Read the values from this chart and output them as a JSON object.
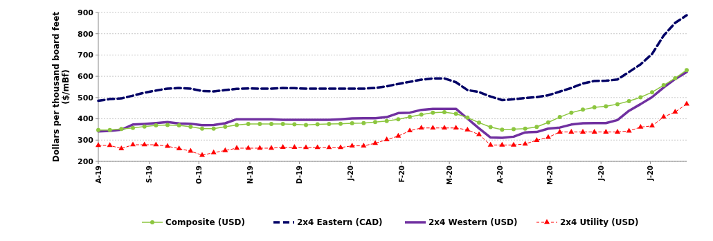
{
  "chart_data": {
    "type": "line",
    "ylabel": "Dollars per thousand board feet ($/mBf)",
    "x": [
      "2019-08-01",
      "2019-08-08",
      "2019-08-15",
      "2019-08-22",
      "2019-08-29",
      "2019-09-05",
      "2019-09-12",
      "2019-09-19",
      "2019-09-26",
      "2019-10-03",
      "2019-10-10",
      "2019-10-17",
      "2019-10-24",
      "2019-10-31",
      "2019-11-07",
      "2019-11-14",
      "2019-11-21",
      "2019-11-28",
      "2019-12-05",
      "2019-12-12",
      "2019-12-19",
      "2019-12-26",
      "2020-01-02",
      "2020-01-09",
      "2020-01-16",
      "2020-01-23",
      "2020-01-30",
      "2020-02-06",
      "2020-02-13",
      "2020-02-20",
      "2020-02-27",
      "2020-03-05",
      "2020-03-12",
      "2020-03-19",
      "2020-03-26",
      "2020-04-02",
      "2020-04-09",
      "2020-04-16",
      "2020-04-23",
      "2020-04-30",
      "2020-05-07",
      "2020-05-14",
      "2020-05-21",
      "2020-05-28",
      "2020-06-04",
      "2020-06-11",
      "2020-06-18",
      "2020-06-25",
      "2020-07-02",
      "2020-07-09",
      "2020-07-16",
      "2020-07-23"
    ],
    "xlim": [
      "2019-08-01",
      "2020-07-23"
    ],
    "xticks": [
      {
        "value": "2019-08-01",
        "label": "A-19"
      },
      {
        "value": "2019-09-01",
        "label": "S-19"
      },
      {
        "value": "2019-10-01",
        "label": "O-19"
      },
      {
        "value": "2019-11-01",
        "label": "N-19"
      },
      {
        "value": "2019-12-01",
        "label": "D-19"
      },
      {
        "value": "2020-01-01",
        "label": "J-20"
      },
      {
        "value": "2020-02-01",
        "label": "F-20"
      },
      {
        "value": "2020-03-01",
        "label": "M-20"
      },
      {
        "value": "2020-04-01",
        "label": "A-20"
      },
      {
        "value": "2020-05-01",
        "label": "M-20"
      },
      {
        "value": "2020-06-01",
        "label": "J-20"
      },
      {
        "value": "2020-07-01",
        "label": "J-20"
      }
    ],
    "ylim": [
      200,
      900
    ],
    "yticks": [
      200,
      300,
      400,
      500,
      600,
      700,
      800,
      900
    ],
    "grid": "y",
    "legend": "bottom",
    "series": [
      {
        "name": "Composite (USD)",
        "color": "#8cc63f",
        "marker": "circle",
        "line_style": "solid",
        "values": [
          347,
          347,
          352,
          357,
          364,
          369,
          371,
          369,
          363,
          354,
          354,
          363,
          371,
          376,
          376,
          376,
          376,
          374,
          371,
          374,
          376,
          377,
          379,
          380,
          385,
          390,
          398,
          409,
          420,
          429,
          431,
          424,
          406,
          382,
          361,
          349,
          351,
          354,
          362,
          383,
          408,
          429,
          443,
          454,
          459,
          469,
          483,
          501,
          525,
          558,
          591,
          629
        ]
      },
      {
        "name": "2x4 Eastern (CAD)",
        "color": "#000066",
        "marker": "none",
        "line_style": "dashed",
        "values": [
          485,
          493,
          496,
          509,
          523,
          533,
          542,
          545,
          542,
          531,
          529,
          535,
          541,
          543,
          542,
          542,
          545,
          544,
          542,
          542,
          542,
          542,
          542,
          542,
          545,
          553,
          564,
          574,
          584,
          590,
          590,
          572,
          535,
          526,
          505,
          488,
          492,
          498,
          502,
          511,
          528,
          545,
          566,
          578,
          579,
          585,
          620,
          656,
          705,
          791,
          851,
          887
        ]
      },
      {
        "name": "2x4 Western (USD)",
        "color": "#7030a0",
        "marker": "none",
        "line_style": "solid",
        "values": [
          341,
          343,
          349,
          373,
          376,
          380,
          385,
          378,
          377,
          370,
          371,
          379,
          398,
          398,
          398,
          398,
          395,
          395,
          395,
          395,
          395,
          398,
          402,
          403,
          403,
          408,
          427,
          429,
          442,
          447,
          447,
          447,
          401,
          355,
          312,
          311,
          316,
          336,
          338,
          354,
          359,
          373,
          379,
          380,
          380,
          394,
          438,
          469,
          502,
          547,
          587,
          620
        ]
      },
      {
        "name": "2x4 Utility (USD)",
        "color": "#ff0000",
        "marker": "triangle",
        "line_style": "dashed",
        "values": [
          275,
          275,
          260,
          278,
          278,
          278,
          271,
          260,
          248,
          229,
          241,
          251,
          262,
          262,
          262,
          262,
          266,
          266,
          265,
          265,
          265,
          265,
          273,
          273,
          285,
          302,
          319,
          344,
          357,
          357,
          357,
          357,
          348,
          326,
          277,
          277,
          277,
          282,
          299,
          313,
          338,
          338,
          338,
          338,
          338,
          338,
          343,
          361,
          367,
          409,
          432,
          470
        ]
      }
    ]
  }
}
